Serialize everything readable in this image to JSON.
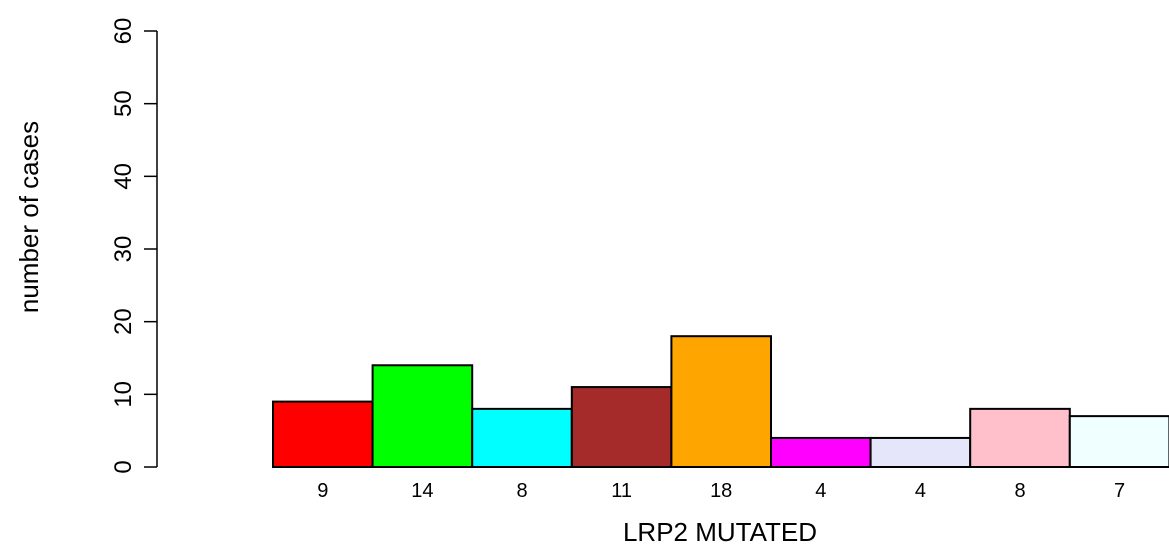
{
  "chart_data": {
    "type": "bar",
    "xlabel": "LRP2 MUTATED",
    "ylabel": "number of cases",
    "ylim": [
      0,
      60
    ],
    "yticks": [
      0,
      10,
      20,
      30,
      40,
      50,
      60
    ],
    "values": [
      9,
      14,
      8,
      11,
      18,
      4,
      4,
      8,
      7
    ],
    "bar_labels": [
      "9",
      "14",
      "8",
      "11",
      "18",
      "4",
      "4",
      "8",
      "7"
    ],
    "colors": [
      "#ff0000",
      "#00ff00",
      "#00ffff",
      "#a52a2a",
      "#ffa500",
      "#ff00ff",
      "#e6e6fa",
      "#ffc0cb",
      "#f0ffff"
    ],
    "grid": false
  }
}
